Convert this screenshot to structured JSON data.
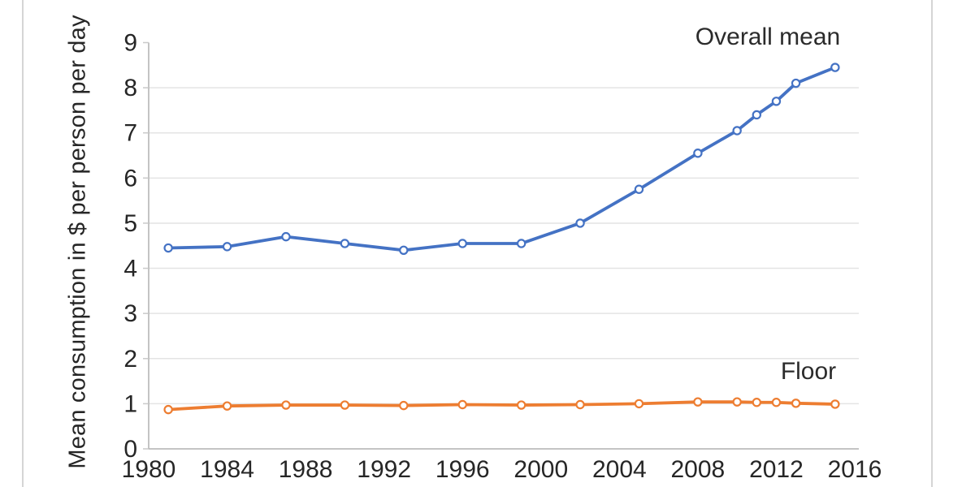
{
  "page": {
    "background": "#ffffff",
    "frame_border_color": "#d5d5d5"
  },
  "chart_data": {
    "type": "line",
    "title": "",
    "xlabel": "",
    "ylabel": "Mean consumption in $ per person per day",
    "xlim": [
      1980,
      2016.3
    ],
    "ylim": [
      0,
      9
    ],
    "x_ticks": [
      1980,
      1984,
      1988,
      1992,
      1996,
      2000,
      2004,
      2008,
      2012,
      2016
    ],
    "y_ticks": [
      0,
      1,
      2,
      3,
      4,
      5,
      6,
      7,
      8,
      9
    ],
    "grid": "horizontal-only",
    "legend_position": "inline-annotations",
    "x": [
      1981,
      1984,
      1987,
      1990,
      1993,
      1996,
      1999,
      2002,
      2005,
      2008,
      2010,
      2011,
      2012,
      2013,
      2015
    ],
    "series": [
      {
        "name": "Overall mean",
        "color": "#4472C4",
        "marker": "open-circle",
        "values": [
          4.45,
          4.48,
          4.7,
          4.55,
          4.4,
          4.55,
          4.55,
          5.0,
          5.75,
          6.55,
          7.05,
          7.4,
          7.7,
          8.1,
          8.45
        ]
      },
      {
        "name": "Floor",
        "color": "#ED7D31",
        "marker": "open-circle",
        "values": [
          0.87,
          0.95,
          0.97,
          0.97,
          0.96,
          0.98,
          0.97,
          0.98,
          1.0,
          1.04,
          1.04,
          1.03,
          1.03,
          1.01,
          0.99
        ]
      }
    ],
    "style": {
      "axis_color": "#b0b0b0",
      "grid_color": "#e4e4e4",
      "tick_text_color": "#262626",
      "tick_font_size": 30
    }
  }
}
